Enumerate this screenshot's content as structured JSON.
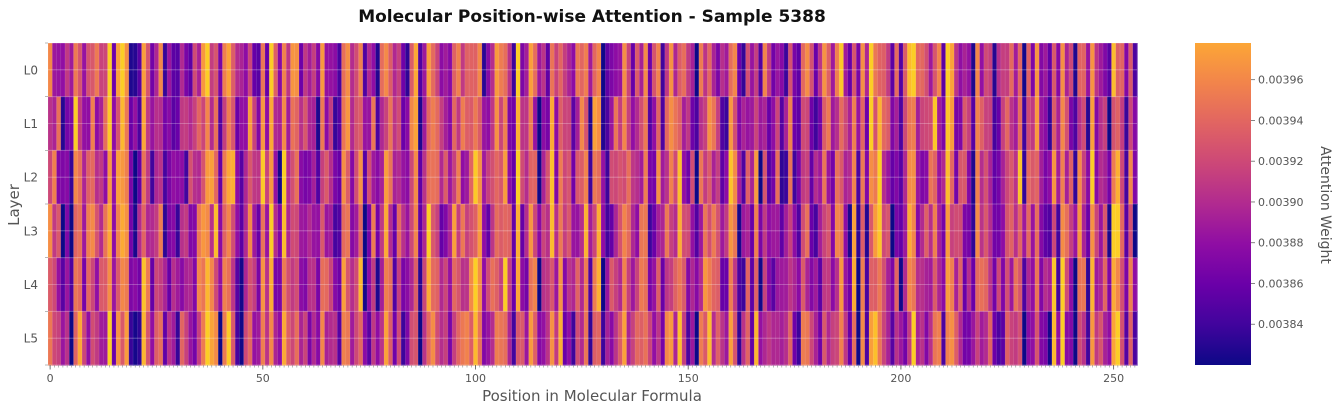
{
  "chart_data": {
    "type": "heatmap",
    "title": "Molecular Position-wise Attention - Sample 5388",
    "xlabel": "Position in Molecular Formula",
    "ylabel": "Layer",
    "colorbar_label": "Attention Weight",
    "colormap": "plasma",
    "rows": [
      "L0",
      "L1",
      "L2",
      "L3",
      "L4",
      "L5"
    ],
    "n_positions": 256,
    "x_ticks": [
      0,
      50,
      100,
      150,
      200,
      250
    ],
    "x_tick_labels": [
      "0",
      "50",
      "100",
      "150",
      "200",
      "250"
    ],
    "value_range": [
      0.00382,
      0.003978
    ],
    "colorbar_ticks": [
      0.00384,
      0.00386,
      0.00388,
      0.0039,
      0.00392,
      0.00394,
      0.00396
    ],
    "colorbar_tick_labels": [
      "0.00384",
      "0.00386",
      "0.00388",
      "0.00390",
      "0.00392",
      "0.00394",
      "0.00396"
    ],
    "shading": "gouraud",
    "grid": true,
    "low_attention_positions": [
      3,
      5,
      19,
      20,
      40,
      63,
      77,
      84,
      115,
      130,
      152,
      167,
      190,
      200,
      222,
      229,
      241,
      244,
      255
    ],
    "high_attention_positions": [
      6,
      17,
      22,
      37,
      55,
      70,
      90,
      110,
      129,
      160,
      193,
      208,
      232,
      251
    ]
  }
}
